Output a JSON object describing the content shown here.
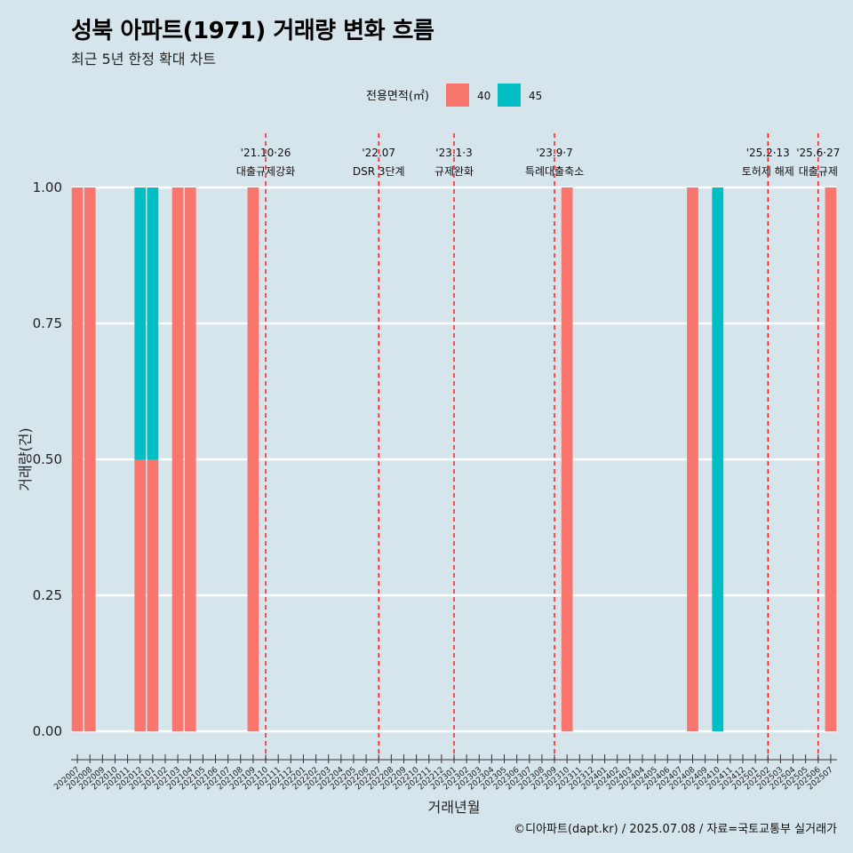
{
  "title": "성북 아파트(1971) 거래량 변화 흐름",
  "subtitle": "최근 5년 한정 확대 차트",
  "caption": "©디아파트(dapt.kr) / 2025.07.08 / 자료=국토교통부 실거래가",
  "colors": {
    "40": "#f8766d",
    "45": "#00bfc4",
    "background": "#d6e4ec",
    "grid": "#ffffff",
    "event_line": "#ff0000"
  },
  "chart_data": {
    "type": "bar",
    "xlabel": "거래년월",
    "ylabel": "거래량(건)",
    "ylim": [
      0,
      1
    ],
    "yticks": [
      "0.00",
      "0.25",
      "0.50",
      "0.75",
      "1.00"
    ],
    "legend": {
      "title": "전용면적(㎡)",
      "placement": "top",
      "entries": [
        "40",
        "45"
      ]
    },
    "categories": [
      "202007",
      "202008",
      "202009",
      "202010",
      "202011",
      "202012",
      "202101",
      "202102",
      "202103",
      "202104",
      "202105",
      "202106",
      "202107",
      "202108",
      "202109",
      "202110",
      "202111",
      "202112",
      "202201",
      "202202",
      "202203",
      "202204",
      "202205",
      "202206",
      "202207",
      "202208",
      "202209",
      "202210",
      "202211",
      "202212",
      "202301",
      "202302",
      "202303",
      "202304",
      "202305",
      "202306",
      "202307",
      "202308",
      "202309",
      "202310",
      "202311",
      "202312",
      "202401",
      "202402",
      "202403",
      "202404",
      "202405",
      "202406",
      "202407",
      "202408",
      "202409",
      "202410",
      "202411",
      "202412",
      "202501",
      "202502",
      "202503",
      "202504",
      "202505",
      "202506",
      "202507"
    ],
    "series": [
      {
        "name": "40",
        "values": [
          1,
          1,
          0,
          0,
          0,
          0.5,
          0.5,
          0,
          1,
          1,
          0,
          0,
          0,
          0,
          1,
          0,
          0,
          0,
          0,
          0,
          0,
          0,
          0,
          0,
          0,
          0,
          0,
          0,
          0,
          0,
          0,
          0,
          0,
          0,
          0,
          0,
          0,
          0,
          0,
          1,
          0,
          0,
          0,
          0,
          0,
          0,
          0,
          0,
          0,
          1,
          0,
          0,
          0,
          0,
          0,
          0,
          0,
          0,
          0,
          0,
          1
        ]
      },
      {
        "name": "45",
        "values": [
          0,
          0,
          0,
          0,
          0,
          0.5,
          0.5,
          0,
          0,
          0,
          0,
          0,
          0,
          0,
          0,
          0,
          0,
          0,
          0,
          0,
          0,
          0,
          0,
          0,
          0,
          0,
          0,
          0,
          0,
          0,
          0,
          0,
          0,
          0,
          0,
          0,
          0,
          0,
          0,
          0,
          0,
          0,
          0,
          0,
          0,
          0,
          0,
          0,
          0,
          0,
          0,
          1,
          0,
          0,
          0,
          0,
          0,
          0,
          0,
          0,
          0
        ]
      }
    ],
    "annotations": [
      {
        "x": "202110",
        "date": "'21.10·26",
        "label": "대출규제강화"
      },
      {
        "x": "202207",
        "date": "'22.07",
        "label": "DSR 3단계"
      },
      {
        "x": "202301",
        "date": "'23.1·3",
        "label": "규제완화"
      },
      {
        "x": "202309",
        "date": "'23.9·7",
        "label": "특례대출축소"
      },
      {
        "x": "202502",
        "date": "'25.2·13",
        "label": "토허제 해제"
      },
      {
        "x": "202506",
        "date": "'25.6·27",
        "label": "대출규제"
      }
    ]
  }
}
